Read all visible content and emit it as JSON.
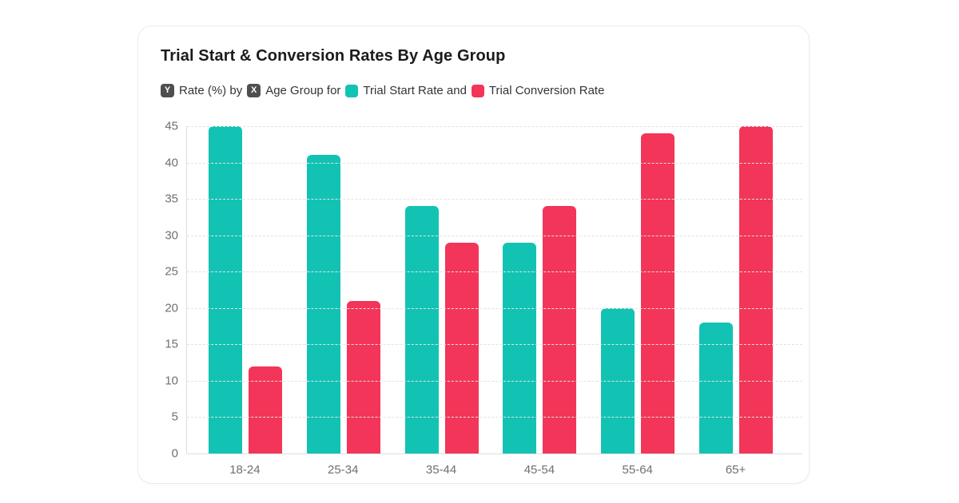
{
  "card": {
    "title": "Trial Start & Conversion Rates By Age Group",
    "subtitle": {
      "y_badge": "Y",
      "y_text": "Rate (%) by",
      "x_badge": "X",
      "x_text": "Age Group for",
      "series1_text": "Trial Start Rate and",
      "series2_text": "Trial Conversion Rate"
    }
  },
  "colors": {
    "series1": "#12C3B4",
    "series2": "#F23558",
    "badge_bg": "#4F4F4F",
    "grid": "#E3E3E3",
    "axis": "#DCDCDC",
    "tick_text": "#6F6F6F"
  },
  "chart_data": {
    "type": "bar",
    "title": "Trial Start & Conversion Rates By Age Group",
    "categories": [
      "18-24",
      "25-34",
      "35-44",
      "45-54",
      "55-64",
      "65+"
    ],
    "series": [
      {
        "name": "Trial Start Rate",
        "color": "#12C3B4",
        "values": [
          45,
          41,
          34,
          29,
          20,
          18
        ]
      },
      {
        "name": "Trial Conversion Rate",
        "color": "#F23558",
        "values": [
          12,
          21,
          29,
          34,
          44,
          45
        ]
      }
    ],
    "xlabel": "Age Group",
    "ylabel": "Rate (%)",
    "ylim": [
      0,
      45
    ],
    "ytick_step": 5,
    "grid": true,
    "legend_position": "top"
  }
}
